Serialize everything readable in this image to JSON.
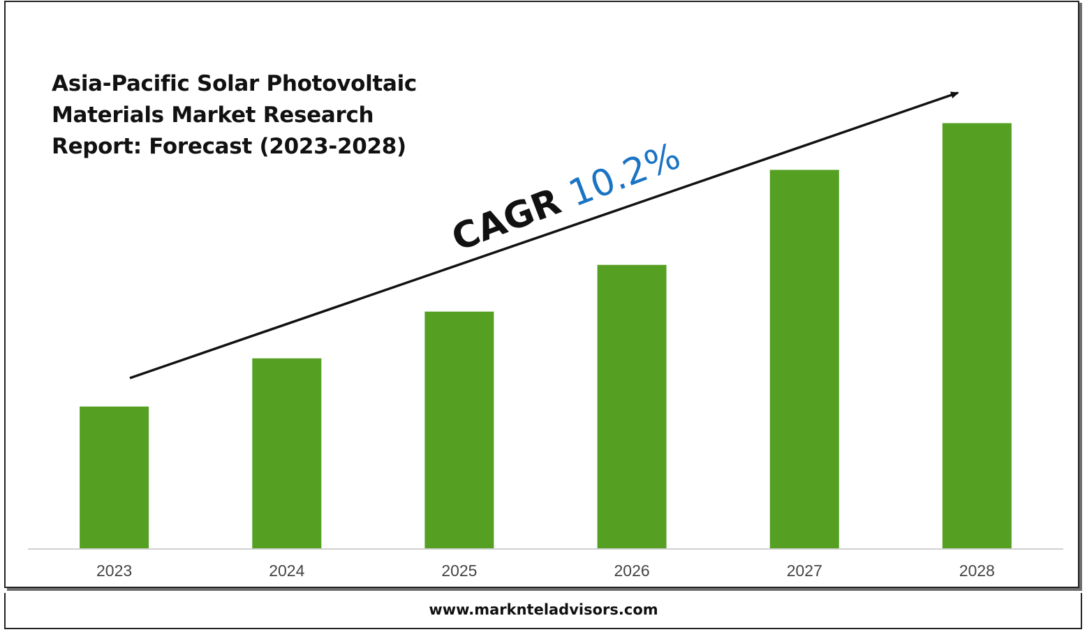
{
  "title_lines": [
    "Asia-Pacific Solar Photovoltaic",
    "Materials Market Research",
    "Report: Forecast (2023-2028)"
  ],
  "cagr": {
    "label": "CAGR",
    "value": "10.2%",
    "value_color": "#1a74c4"
  },
  "footer": {
    "website": "www.marknteladvisors.com"
  },
  "chart_data": {
    "type": "bar",
    "categories": [
      "2023",
      "2024",
      "2025",
      "2026",
      "2027",
      "2028"
    ],
    "values": [
      1.0,
      1.34,
      1.67,
      2.0,
      2.67,
      3.0
    ],
    "bar_color": "#55a023",
    "ylim": [
      0,
      3.15
    ],
    "grid": false,
    "annotations": [
      "CAGR 10.2%"
    ]
  }
}
